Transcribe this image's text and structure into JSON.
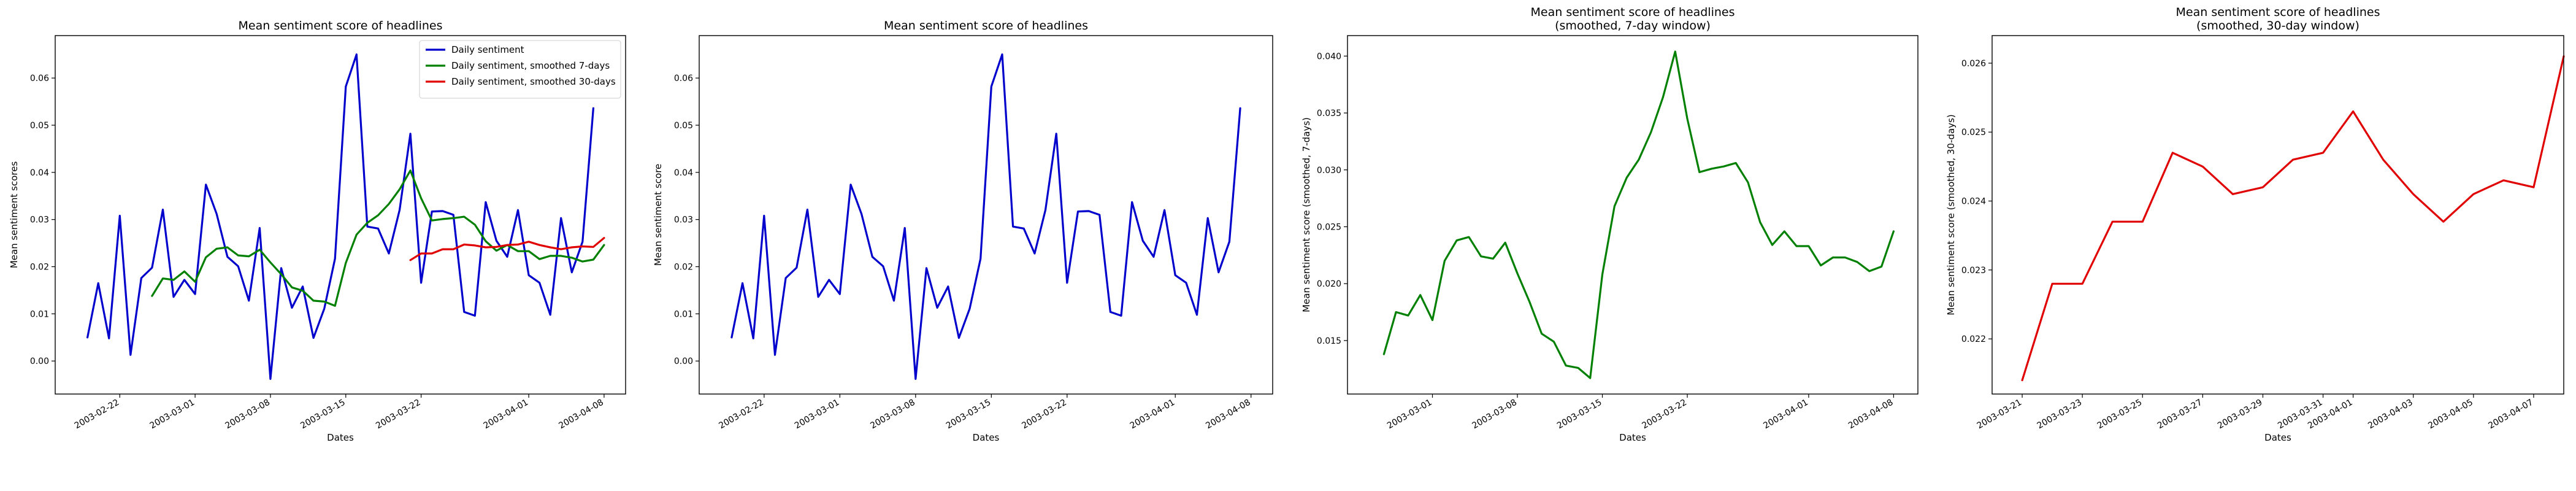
{
  "chart_data": [
    {
      "type": "line",
      "title": "Mean sentiment score of headlines",
      "xlabel": "Dates",
      "ylabel": "Mean sentiment scores",
      "x_start": "2003-02-19",
      "x_range": [
        "2003-02-16",
        "2003-04-10"
      ],
      "ylim": [
        -0.007,
        0.069
      ],
      "yticks": [
        0.0,
        0.01,
        0.02,
        0.03,
        0.04,
        0.05,
        0.06
      ],
      "xticks": [
        "2003-02-22",
        "2003-03-01",
        "2003-03-08",
        "2003-03-15",
        "2003-03-22",
        "2003-04-01",
        "2003-04-08"
      ],
      "legend": "top-right",
      "grid": false,
      "series": [
        {
          "name": "Daily sentiment",
          "color": "#0000cc",
          "start": "2003-02-19",
          "values": [
            0.005,
            0.0165,
            0.0048,
            0.0308,
            0.0013,
            0.0176,
            0.0198,
            0.0321,
            0.0136,
            0.0172,
            0.0142,
            0.0374,
            0.0312,
            0.0221,
            0.0201,
            0.0128,
            0.0282,
            -0.0038,
            0.0197,
            0.0113,
            0.0158,
            0.0049,
            0.0111,
            0.0217,
            0.0582,
            0.065,
            0.0285,
            0.0281,
            0.0228,
            0.032,
            0.0482,
            0.0166,
            0.0317,
            0.0318,
            0.031,
            0.0104,
            0.0096,
            0.0337,
            0.0255,
            0.0221,
            0.032,
            0.0182,
            0.0166,
            0.0098,
            0.0303,
            0.0188,
            0.0253,
            0.0536
          ]
        },
        {
          "name": "Daily sentiment, smoothed 7-days",
          "color": "#008000",
          "start": "2003-02-25",
          "values": [
            0.0138,
            0.0175,
            0.0172,
            0.019,
            0.0168,
            0.022,
            0.0238,
            0.0241,
            0.0224,
            0.0222,
            0.0236,
            0.0209,
            0.0184,
            0.0156,
            0.0149,
            0.0128,
            0.0126,
            0.0117,
            0.0208,
            0.0268,
            0.0293,
            0.0309,
            0.0333,
            0.0364,
            0.0404,
            0.0345,
            0.0298,
            0.0301,
            0.0303,
            0.0306,
            0.0289,
            0.0254,
            0.0234,
            0.0246,
            0.0233,
            0.0233,
            0.0216,
            0.0223,
            0.0223,
            0.0219,
            0.0211,
            0.0215,
            0.0246
          ]
        },
        {
          "name": "Daily sentiment, smoothed 30-days",
          "color": "#e00000",
          "start": "2003-03-21",
          "values": [
            0.0214,
            0.0228,
            0.0228,
            0.0237,
            0.0237,
            0.0247,
            0.0245,
            0.0241,
            0.0242,
            0.0246,
            0.0247,
            0.0253,
            0.0246,
            0.0241,
            0.0237,
            0.0241,
            0.0243,
            0.0242,
            0.0261
          ]
        }
      ]
    },
    {
      "type": "line",
      "title": "Mean sentiment score of headlines",
      "xlabel": "Dates",
      "ylabel": "Mean sentiment score",
      "x_range": [
        "2003-02-16",
        "2003-04-10"
      ],
      "ylim": [
        -0.007,
        0.069
      ],
      "yticks": [
        0.0,
        0.01,
        0.02,
        0.03,
        0.04,
        0.05,
        0.06
      ],
      "xticks": [
        "2003-02-22",
        "2003-03-01",
        "2003-03-08",
        "2003-03-15",
        "2003-03-22",
        "2003-04-01",
        "2003-04-08"
      ],
      "grid": false,
      "series": [
        {
          "color": "#0000cc",
          "start": "2003-02-19",
          "values": [
            0.005,
            0.0165,
            0.0048,
            0.0308,
            0.0013,
            0.0176,
            0.0198,
            0.0321,
            0.0136,
            0.0172,
            0.0142,
            0.0374,
            0.0312,
            0.0221,
            0.0201,
            0.0128,
            0.0282,
            -0.0038,
            0.0197,
            0.0113,
            0.0158,
            0.0049,
            0.0111,
            0.0217,
            0.0582,
            0.065,
            0.0285,
            0.0281,
            0.0228,
            0.032,
            0.0482,
            0.0166,
            0.0317,
            0.0318,
            0.031,
            0.0104,
            0.0096,
            0.0337,
            0.0255,
            0.0221,
            0.032,
            0.0182,
            0.0166,
            0.0098,
            0.0303,
            0.0188,
            0.0253,
            0.0536
          ]
        }
      ]
    },
    {
      "type": "line",
      "title": "Mean sentiment score of headlines\n(smoothed, 7-day window)",
      "xlabel": "Dates",
      "ylabel": "Mean sentiment score (smoothed, 7-days)",
      "x_range": [
        "2003-02-22",
        "2003-04-10"
      ],
      "ylim": [
        0.0103,
        0.0418
      ],
      "yticks": [
        0.015,
        0.02,
        0.025,
        0.03,
        0.035,
        0.04
      ],
      "xticks": [
        "2003-03-01",
        "2003-03-08",
        "2003-03-15",
        "2003-03-22",
        "2003-04-01",
        "2003-04-08"
      ],
      "grid": false,
      "series": [
        {
          "color": "#008000",
          "start": "2003-02-25",
          "values": [
            0.0138,
            0.0175,
            0.0172,
            0.019,
            0.0168,
            0.022,
            0.0238,
            0.0241,
            0.0224,
            0.0222,
            0.0236,
            0.0209,
            0.0184,
            0.0156,
            0.0149,
            0.0128,
            0.0126,
            0.0117,
            0.0208,
            0.0268,
            0.0293,
            0.0309,
            0.0333,
            0.0364,
            0.0404,
            0.0345,
            0.0298,
            0.0301,
            0.0303,
            0.0306,
            0.0289,
            0.0254,
            0.0234,
            0.0246,
            0.0233,
            0.0233,
            0.0216,
            0.0223,
            0.0223,
            0.0219,
            0.0211,
            0.0215,
            0.0246
          ]
        }
      ]
    },
    {
      "type": "line",
      "title": "Mean sentiment score of headlines\n(smoothed, 30-day window)",
      "xlabel": "Dates",
      "ylabel": "Mean sentiment score (smoothed, 30-days)",
      "x_range": [
        "2003-03-20",
        "2003-04-08"
      ],
      "ylim": [
        0.0212,
        0.0264
      ],
      "yticks": [
        0.022,
        0.023,
        0.024,
        0.025,
        0.026
      ],
      "xticks": [
        "2003-03-21",
        "2003-03-23",
        "2003-03-25",
        "2003-03-27",
        "2003-03-29",
        "2003-03-31",
        "2003-04-01",
        "2003-04-03",
        "2003-04-05",
        "2003-04-07"
      ],
      "grid": false,
      "series": [
        {
          "color": "#e00000",
          "start": "2003-03-21",
          "values": [
            0.0214,
            0.0228,
            0.0228,
            0.0237,
            0.0237,
            0.0247,
            0.0245,
            0.0241,
            0.0242,
            0.0246,
            0.0247,
            0.0253,
            0.0246,
            0.0241,
            0.0237,
            0.0241,
            0.0243,
            0.0242,
            0.0261
          ]
        }
      ]
    }
  ]
}
